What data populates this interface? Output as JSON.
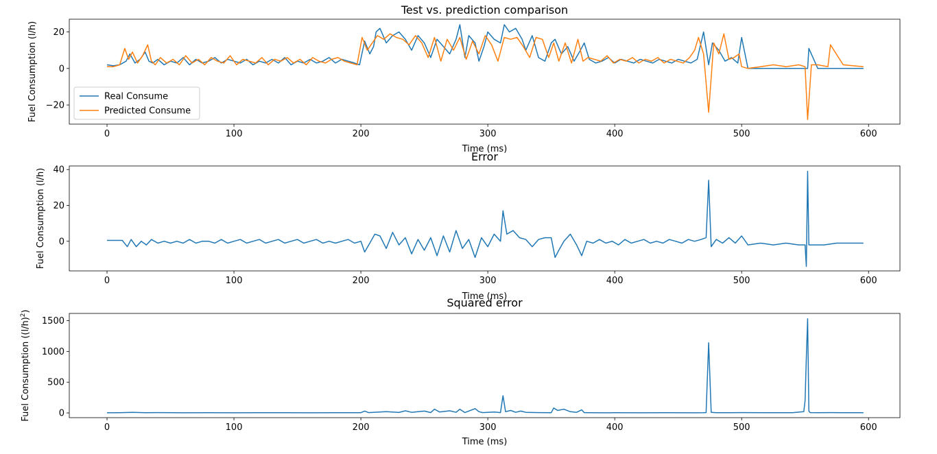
{
  "chart_data": [
    {
      "type": "line",
      "title": "Test vs. prediction comparison",
      "xlabel": "Time (ms)",
      "ylabel": "Fuel Consumption (l/h)",
      "xlim": [
        -29.75,
        624.75
      ],
      "ylim": [
        -30.5,
        27
      ],
      "xticks": [
        0,
        100,
        200,
        300,
        400,
        500,
        600
      ],
      "yticks": [
        -20,
        0,
        20
      ],
      "ytick_labels": [
        "−20",
        "0",
        "20"
      ],
      "grid": false,
      "legend": "lower-left",
      "series": [
        {
          "name": "Real Consume",
          "color": "#1f77b4",
          "x": [
            0,
            5,
            10,
            15,
            18,
            22,
            26,
            30,
            33,
            36,
            40,
            45,
            50,
            55,
            60,
            65,
            70,
            75,
            80,
            85,
            90,
            95,
            100,
            105,
            110,
            115,
            120,
            125,
            130,
            135,
            140,
            145,
            150,
            155,
            160,
            165,
            170,
            175,
            180,
            185,
            190,
            195,
            199,
            203,
            207,
            210,
            212,
            215,
            220,
            225,
            230,
            235,
            240,
            245,
            250,
            255,
            260,
            265,
            270,
            275,
            278,
            282,
            285,
            290,
            293,
            297,
            300,
            305,
            310,
            313,
            317,
            322,
            327,
            330,
            335,
            340,
            345,
            350,
            353,
            358,
            363,
            368,
            373,
            376,
            380,
            385,
            390,
            395,
            400,
            405,
            410,
            415,
            420,
            425,
            430,
            435,
            440,
            445,
            450,
            455,
            460,
            465,
            470,
            474,
            477,
            482,
            487,
            492,
            497,
            500,
            505,
            520,
            540,
            552,
            553,
            560,
            568,
            570,
            580,
            596
          ],
          "y": [
            2,
            1.5,
            2,
            4,
            8,
            3,
            5,
            9,
            4,
            3,
            5,
            2,
            4,
            3,
            6,
            2,
            5,
            3,
            4,
            6,
            3,
            5,
            4,
            3,
            5,
            2,
            4,
            3,
            5,
            3,
            6,
            2,
            4,
            3,
            5,
            3,
            4,
            6,
            3,
            5,
            4,
            3,
            2,
            15,
            8,
            12,
            20,
            22,
            14,
            18,
            20,
            16,
            10,
            18,
            14,
            6,
            16,
            12,
            8,
            16,
            24,
            6,
            18,
            14,
            4,
            12,
            20,
            16,
            14,
            24,
            20,
            22,
            16,
            10,
            18,
            6,
            4,
            14,
            16,
            8,
            12,
            4,
            10,
            14,
            5,
            3,
            4,
            6,
            3,
            5,
            4,
            3,
            5,
            4,
            3,
            5,
            4,
            3,
            5,
            4,
            3,
            5,
            20,
            2,
            14,
            10,
            4,
            6,
            3,
            17,
            0,
            0,
            0,
            0,
            11,
            0,
            0,
            0,
            0,
            0
          ]
        },
        {
          "name": "Predicted Consume",
          "color": "#ff7f0e",
          "x": [
            0,
            5,
            10,
            14,
            17,
            20,
            24,
            28,
            32,
            35,
            38,
            42,
            47,
            52,
            57,
            62,
            67,
            72,
            77,
            82,
            87,
            92,
            97,
            102,
            107,
            112,
            117,
            122,
            127,
            132,
            137,
            142,
            147,
            152,
            157,
            162,
            167,
            172,
            177,
            182,
            187,
            192,
            197,
            201,
            205,
            209,
            213,
            218,
            223,
            228,
            233,
            238,
            243,
            248,
            253,
            258,
            263,
            268,
            273,
            278,
            283,
            288,
            293,
            298,
            303,
            308,
            313,
            318,
            323,
            328,
            333,
            338,
            343,
            348,
            352,
            356,
            361,
            366,
            371,
            375,
            379,
            384,
            389,
            394,
            399,
            404,
            409,
            414,
            419,
            424,
            429,
            434,
            439,
            444,
            449,
            454,
            459,
            463,
            466,
            470,
            474,
            478,
            482,
            486,
            490,
            494,
            498,
            500,
            505,
            515,
            525,
            535,
            545,
            550,
            552,
            555,
            560,
            568,
            570,
            580,
            596
          ],
          "y": [
            1,
            1,
            2,
            11,
            5,
            9,
            3,
            7,
            13,
            4,
            2,
            6,
            3,
            5,
            2,
            7,
            3,
            5,
            2,
            6,
            4,
            3,
            7,
            2,
            5,
            4,
            3,
            6,
            2,
            5,
            4,
            6,
            3,
            5,
            2,
            6,
            4,
            3,
            5,
            6,
            4,
            3,
            2,
            17,
            10,
            14,
            18,
            16,
            19,
            17,
            16,
            13,
            18,
            14,
            6,
            17,
            4,
            16,
            10,
            17,
            5,
            15,
            8,
            18,
            13,
            4,
            17,
            16,
            17,
            12,
            6,
            17,
            16,
            6,
            14,
            4,
            14,
            3,
            16,
            4,
            6,
            5,
            4,
            7,
            3,
            5,
            4,
            6,
            3,
            5,
            4,
            6,
            3,
            5,
            4,
            3,
            6,
            10,
            17,
            8,
            -24,
            14,
            8,
            19,
            5,
            6,
            8,
            1,
            0,
            1,
            2,
            1,
            2,
            1,
            -28,
            2,
            2,
            1,
            13,
            2,
            1
          ]
        }
      ]
    },
    {
      "type": "line",
      "title": "Error",
      "xlabel": "Time (ms)",
      "ylabel": "Fuel Consumption (l/h)",
      "xlim": [
        -29.75,
        624.75
      ],
      "ylim": [
        -16.5,
        42
      ],
      "xticks": [
        0,
        100,
        200,
        300,
        400,
        500,
        600
      ],
      "yticks": [
        0,
        20,
        40
      ],
      "ytick_labels": [
        "0",
        "20",
        "40"
      ],
      "grid": false,
      "legend": "none",
      "series": [
        {
          "name": "",
          "color": "#1f77b4",
          "x": [
            0,
            6,
            12,
            16,
            19,
            23,
            27,
            31,
            35,
            40,
            45,
            50,
            55,
            60,
            65,
            70,
            75,
            80,
            85,
            90,
            95,
            100,
            105,
            110,
            115,
            120,
            125,
            130,
            135,
            140,
            145,
            150,
            155,
            160,
            165,
            170,
            175,
            180,
            185,
            190,
            195,
            200,
            203,
            207,
            211,
            215,
            220,
            225,
            230,
            235,
            240,
            245,
            250,
            255,
            260,
            265,
            270,
            275,
            280,
            285,
            290,
            295,
            300,
            305,
            310,
            312,
            315,
            320,
            325,
            330,
            335,
            340,
            345,
            350,
            353,
            356,
            360,
            365,
            370,
            374,
            378,
            383,
            388,
            393,
            398,
            403,
            408,
            413,
            418,
            423,
            428,
            433,
            438,
            443,
            448,
            453,
            458,
            463,
            468,
            472,
            474,
            476,
            480,
            485,
            490,
            495,
            500,
            505,
            515,
            525,
            535,
            545,
            550,
            551,
            552,
            553,
            556,
            565,
            575,
            585,
            596
          ],
          "y": [
            0.5,
            0.5,
            0.5,
            -3,
            1,
            -3,
            0,
            -2,
            1,
            -1,
            0,
            -1,
            0,
            -1,
            1,
            -1,
            0,
            0,
            -1,
            1,
            -1,
            0,
            1,
            -1,
            0,
            1,
            -1,
            0,
            1,
            -1,
            0,
            1,
            -1,
            0,
            1,
            -1,
            0,
            -1,
            0,
            1,
            -1,
            0,
            -6,
            -1,
            4,
            3,
            -4,
            5,
            -2,
            2,
            -7,
            1,
            -5,
            2,
            -8,
            3,
            -6,
            6,
            -4,
            1,
            -9,
            2,
            -3,
            4,
            0,
            17,
            4,
            6,
            2,
            1,
            -3,
            1,
            2,
            2,
            -9,
            -5,
            0,
            4,
            -2,
            -8,
            0,
            -1,
            1,
            -1,
            0,
            -2,
            1,
            -1,
            0,
            1,
            -1,
            0,
            -1,
            1,
            0,
            -1,
            1,
            0,
            1,
            2,
            34,
            -3,
            1,
            -1,
            2,
            -1,
            3,
            -2,
            -1,
            -2,
            -1,
            -2,
            -2,
            -14,
            39,
            -2,
            -2,
            -2,
            -1,
            -1,
            -1
          ]
        }
      ]
    },
    {
      "type": "line",
      "title": "Squared error",
      "xlabel": "Time (ms)",
      "ylabel": "Fuel Consumption ((l/h)",
      "ylabel_sup": "2",
      "ylabel_tail": ")",
      "xlim": [
        -29.75,
        624.75
      ],
      "ylim": [
        -77,
        1617
      ],
      "xticks": [
        0,
        100,
        200,
        300,
        400,
        500,
        600
      ],
      "yticks": [
        0,
        500,
        1000,
        1500
      ],
      "ytick_labels": [
        "0",
        "500",
        "1000",
        "1500"
      ],
      "grid": false,
      "legend": "none",
      "series": [
        {
          "name": "",
          "color": "#1f77b4",
          "x": [
            0,
            10,
            20,
            30,
            40,
            60,
            80,
            100,
            120,
            140,
            160,
            180,
            200,
            203,
            206,
            210,
            220,
            230,
            235,
            240,
            250,
            255,
            258,
            262,
            270,
            275,
            278,
            282,
            290,
            293,
            296,
            300,
            305,
            310,
            312,
            314,
            318,
            322,
            326,
            330,
            340,
            350,
            352,
            355,
            360,
            365,
            370,
            374,
            376,
            380,
            390,
            400,
            420,
            440,
            460,
            470,
            472,
            474,
            476,
            480,
            490,
            500,
            520,
            540,
            549,
            550,
            551,
            552,
            553,
            554,
            560,
            570,
            580,
            596
          ],
          "y": [
            2,
            4,
            10,
            3,
            5,
            2,
            3,
            2,
            3,
            4,
            2,
            3,
            4,
            30,
            5,
            10,
            20,
            8,
            35,
            10,
            30,
            5,
            60,
            15,
            35,
            10,
            60,
            5,
            70,
            20,
            5,
            10,
            15,
            5,
            280,
            20,
            40,
            10,
            30,
            10,
            5,
            4,
            80,
            40,
            60,
            20,
            10,
            50,
            5,
            3,
            2,
            3,
            2,
            3,
            2,
            3,
            5,
            1140,
            10,
            3,
            4,
            5,
            4,
            4,
            20,
            200,
            900,
            1530,
            30,
            5,
            4,
            5,
            4,
            4
          ]
        }
      ]
    }
  ]
}
